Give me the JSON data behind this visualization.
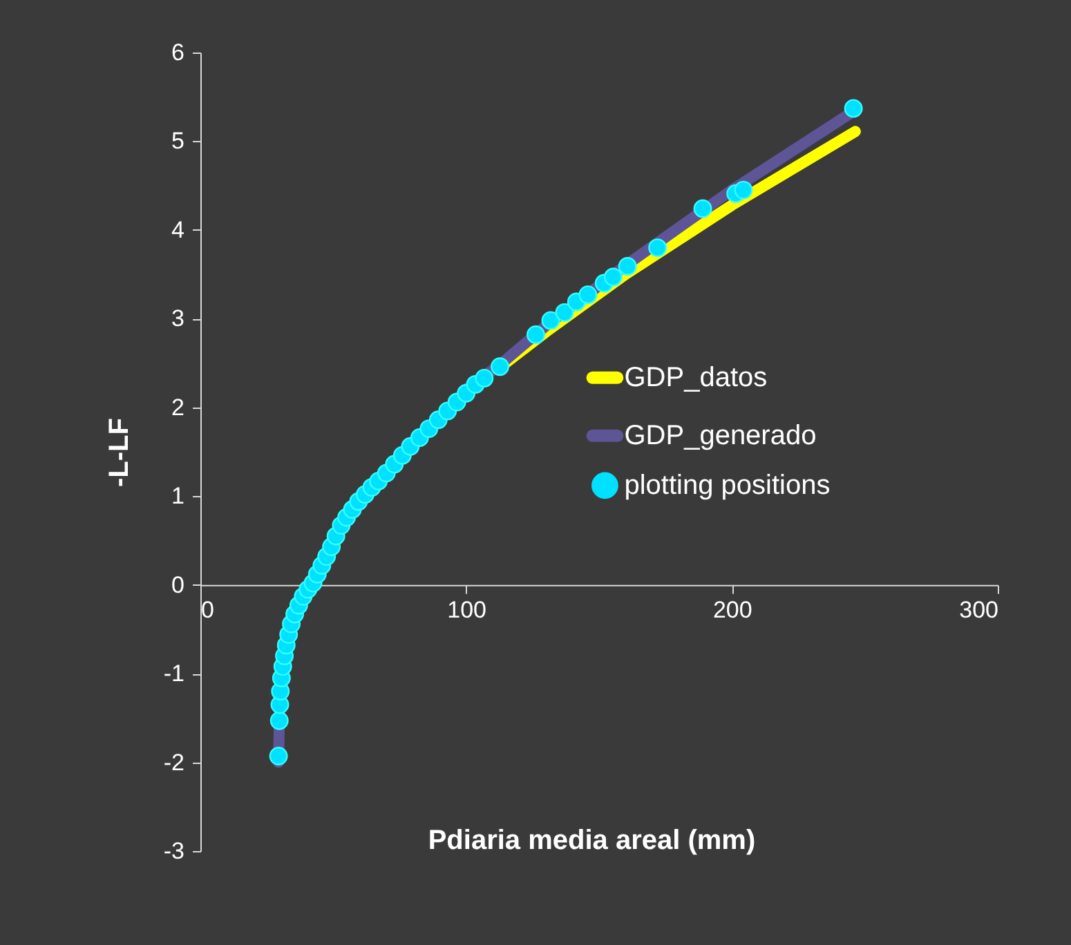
{
  "chart_data": {
    "type": "scatter",
    "xlabel": "Pdiaria  media areal (mm)",
    "ylabel": "-L-LF",
    "xlim": [
      0,
      300
    ],
    "xticks": [
      0,
      100,
      200,
      300
    ],
    "ylim": [
      -3,
      6
    ],
    "yticks": [
      -3,
      -2,
      -1,
      0,
      1,
      2,
      3,
      4,
      5,
      6
    ],
    "grid": false,
    "legend": "right",
    "line_style": "solid",
    "series": [
      {
        "name": "GDP_datos",
        "type": "line",
        "color": "#ffff00",
        "x": [
          112.7,
          130,
          160,
          200,
          246.4
        ],
        "values": [
          2.45,
          2.85,
          3.5,
          4.28,
          5.11
        ]
      },
      {
        "name": "GDP_generado",
        "type": "line",
        "color": "#5e5597",
        "x": [
          29.4,
          29.7,
          30.2,
          31,
          32.8,
          35.5,
          38.7,
          42.4,
          47.5,
          53,
          62,
          70,
          79,
          89.5,
          101,
          112.7,
          130,
          160,
          200,
          246.4
        ],
        "values": [
          -2.0,
          -1.53,
          -1.15,
          -0.85,
          -0.62,
          -0.33,
          -0.13,
          0,
          0.32,
          0.67,
          1.0,
          1.26,
          1.56,
          1.86,
          2.23,
          2.48,
          2.92,
          3.6,
          4.45,
          5.35
        ]
      },
      {
        "name": "plotting positions",
        "marker": "circle",
        "color": "#00e0ff",
        "x": [
          29.4,
          29.7,
          29.9,
          30.1,
          30.5,
          31,
          31.6,
          32.3,
          33.2,
          34.2,
          35.5,
          37,
          38.7,
          40.5,
          42.4,
          44,
          45.7,
          47.5,
          49.3,
          51,
          53,
          55,
          57.2,
          59.5,
          62,
          64.5,
          67,
          70,
          73,
          76,
          79,
          82.5,
          86,
          89.5,
          93,
          96.5,
          100,
          103.5,
          106.8,
          112.7,
          126.2,
          131.8,
          137,
          141.5,
          145.8,
          151.9,
          155.3,
          160.7,
          172,
          189,
          201.4,
          204.3,
          245.7
        ],
        "values": [
          -1.93,
          -1.53,
          -1.35,
          -1.2,
          -1.05,
          -0.92,
          -0.8,
          -0.68,
          -0.56,
          -0.44,
          -0.33,
          -0.23,
          -0.13,
          -0.05,
          0.02,
          0.12,
          0.22,
          0.32,
          0.43,
          0.55,
          0.67,
          0.76,
          0.85,
          0.94,
          1.02,
          1.1,
          1.17,
          1.26,
          1.36,
          1.46,
          1.56,
          1.66,
          1.76,
          1.86,
          1.96,
          2.06,
          2.16,
          2.26,
          2.33,
          2.46,
          2.82,
          2.98,
          3.07,
          3.19,
          3.27,
          3.4,
          3.47,
          3.59,
          3.8,
          4.24,
          4.41,
          4.45,
          5.37
        ]
      }
    ]
  }
}
